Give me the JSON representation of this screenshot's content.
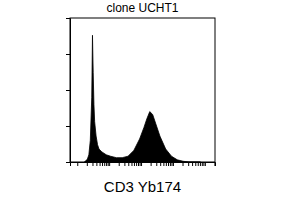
{
  "chart_data": {
    "type": "area",
    "title": "clone UCHT1",
    "x_label": "CD3 Yb174",
    "x": [
      10,
      12,
      13,
      14,
      15,
      15.5,
      16,
      16.5,
      17,
      18,
      19,
      20,
      22,
      25,
      28,
      32,
      36,
      40,
      44,
      48,
      51,
      53,
      55,
      57,
      59,
      62,
      66,
      70,
      74,
      78,
      82,
      90
    ],
    "values": [
      0,
      2,
      5,
      15,
      45,
      88,
      62,
      40,
      28,
      18,
      12,
      9,
      7,
      5,
      4,
      3,
      3,
      4,
      8,
      16,
      24,
      30,
      35,
      33,
      27,
      18,
      9,
      4,
      1.5,
      0.5,
      0,
      0
    ],
    "color": "#000000",
    "xlim": [
      0,
      100
    ],
    "ylim": [
      0,
      100
    ],
    "xticks": [
      5,
      11.6,
      15.5,
      18.2,
      20.4,
      22.1,
      23.6,
      24.9,
      26,
      27,
      33.6,
      37.5,
      40.2,
      42.4,
      44.1,
      45.6,
      46.9,
      48,
      49,
      55.6,
      59.5,
      62.2,
      64.4,
      66.1,
      67.6,
      68.9,
      70,
      71,
      77.6,
      81.5,
      84.2,
      86.4,
      88.1,
      89.6,
      90.9,
      92,
      93,
      99.6
    ],
    "yticks": [
      0,
      25,
      50,
      75,
      100
    ],
    "tick_labels": false
  }
}
